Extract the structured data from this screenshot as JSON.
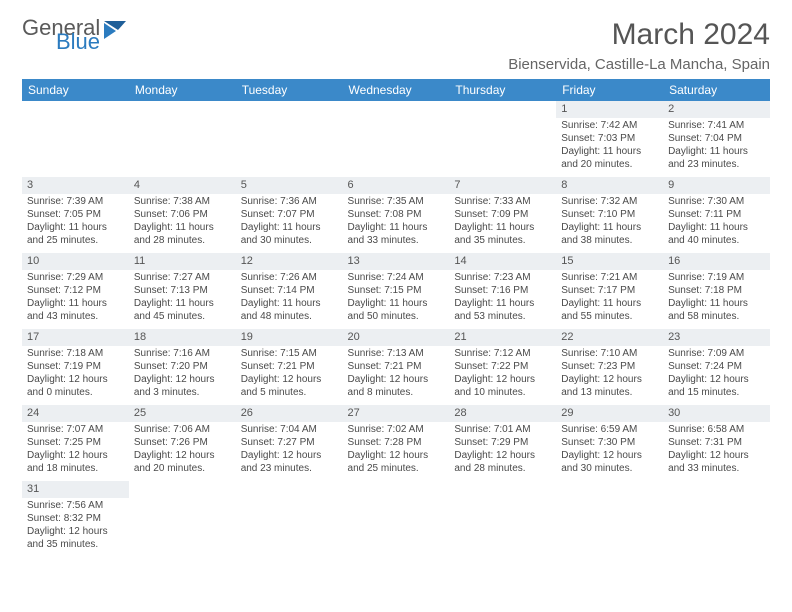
{
  "logo": {
    "text1": "General",
    "text2": "Blue",
    "color1": "#5a5a5a",
    "color2": "#2b7bbf"
  },
  "header": {
    "title": "March 2024",
    "location": "Bienservida, Castille-La Mancha, Spain"
  },
  "colors": {
    "header_bg": "#3b89c9",
    "header_text": "#ffffff",
    "daynum_bg": "#eceff2",
    "body_text": "#4a4a4a",
    "title_text": "#555555"
  },
  "daysOfWeek": [
    "Sunday",
    "Monday",
    "Tuesday",
    "Wednesday",
    "Thursday",
    "Friday",
    "Saturday"
  ],
  "weeks": [
    [
      {
        "n": "",
        "lines": []
      },
      {
        "n": "",
        "lines": []
      },
      {
        "n": "",
        "lines": []
      },
      {
        "n": "",
        "lines": []
      },
      {
        "n": "",
        "lines": []
      },
      {
        "n": "1",
        "lines": [
          "Sunrise: 7:42 AM",
          "Sunset: 7:03 PM",
          "Daylight: 11 hours",
          "and 20 minutes."
        ]
      },
      {
        "n": "2",
        "lines": [
          "Sunrise: 7:41 AM",
          "Sunset: 7:04 PM",
          "Daylight: 11 hours",
          "and 23 minutes."
        ]
      }
    ],
    [
      {
        "n": "3",
        "lines": [
          "Sunrise: 7:39 AM",
          "Sunset: 7:05 PM",
          "Daylight: 11 hours",
          "and 25 minutes."
        ]
      },
      {
        "n": "4",
        "lines": [
          "Sunrise: 7:38 AM",
          "Sunset: 7:06 PM",
          "Daylight: 11 hours",
          "and 28 minutes."
        ]
      },
      {
        "n": "5",
        "lines": [
          "Sunrise: 7:36 AM",
          "Sunset: 7:07 PM",
          "Daylight: 11 hours",
          "and 30 minutes."
        ]
      },
      {
        "n": "6",
        "lines": [
          "Sunrise: 7:35 AM",
          "Sunset: 7:08 PM",
          "Daylight: 11 hours",
          "and 33 minutes."
        ]
      },
      {
        "n": "7",
        "lines": [
          "Sunrise: 7:33 AM",
          "Sunset: 7:09 PM",
          "Daylight: 11 hours",
          "and 35 minutes."
        ]
      },
      {
        "n": "8",
        "lines": [
          "Sunrise: 7:32 AM",
          "Sunset: 7:10 PM",
          "Daylight: 11 hours",
          "and 38 minutes."
        ]
      },
      {
        "n": "9",
        "lines": [
          "Sunrise: 7:30 AM",
          "Sunset: 7:11 PM",
          "Daylight: 11 hours",
          "and 40 minutes."
        ]
      }
    ],
    [
      {
        "n": "10",
        "lines": [
          "Sunrise: 7:29 AM",
          "Sunset: 7:12 PM",
          "Daylight: 11 hours",
          "and 43 minutes."
        ]
      },
      {
        "n": "11",
        "lines": [
          "Sunrise: 7:27 AM",
          "Sunset: 7:13 PM",
          "Daylight: 11 hours",
          "and 45 minutes."
        ]
      },
      {
        "n": "12",
        "lines": [
          "Sunrise: 7:26 AM",
          "Sunset: 7:14 PM",
          "Daylight: 11 hours",
          "and 48 minutes."
        ]
      },
      {
        "n": "13",
        "lines": [
          "Sunrise: 7:24 AM",
          "Sunset: 7:15 PM",
          "Daylight: 11 hours",
          "and 50 minutes."
        ]
      },
      {
        "n": "14",
        "lines": [
          "Sunrise: 7:23 AM",
          "Sunset: 7:16 PM",
          "Daylight: 11 hours",
          "and 53 minutes."
        ]
      },
      {
        "n": "15",
        "lines": [
          "Sunrise: 7:21 AM",
          "Sunset: 7:17 PM",
          "Daylight: 11 hours",
          "and 55 minutes."
        ]
      },
      {
        "n": "16",
        "lines": [
          "Sunrise: 7:19 AM",
          "Sunset: 7:18 PM",
          "Daylight: 11 hours",
          "and 58 minutes."
        ]
      }
    ],
    [
      {
        "n": "17",
        "lines": [
          "Sunrise: 7:18 AM",
          "Sunset: 7:19 PM",
          "Daylight: 12 hours",
          "and 0 minutes."
        ]
      },
      {
        "n": "18",
        "lines": [
          "Sunrise: 7:16 AM",
          "Sunset: 7:20 PM",
          "Daylight: 12 hours",
          "and 3 minutes."
        ]
      },
      {
        "n": "19",
        "lines": [
          "Sunrise: 7:15 AM",
          "Sunset: 7:21 PM",
          "Daylight: 12 hours",
          "and 5 minutes."
        ]
      },
      {
        "n": "20",
        "lines": [
          "Sunrise: 7:13 AM",
          "Sunset: 7:21 PM",
          "Daylight: 12 hours",
          "and 8 minutes."
        ]
      },
      {
        "n": "21",
        "lines": [
          "Sunrise: 7:12 AM",
          "Sunset: 7:22 PM",
          "Daylight: 12 hours",
          "and 10 minutes."
        ]
      },
      {
        "n": "22",
        "lines": [
          "Sunrise: 7:10 AM",
          "Sunset: 7:23 PM",
          "Daylight: 12 hours",
          "and 13 minutes."
        ]
      },
      {
        "n": "23",
        "lines": [
          "Sunrise: 7:09 AM",
          "Sunset: 7:24 PM",
          "Daylight: 12 hours",
          "and 15 minutes."
        ]
      }
    ],
    [
      {
        "n": "24",
        "lines": [
          "Sunrise: 7:07 AM",
          "Sunset: 7:25 PM",
          "Daylight: 12 hours",
          "and 18 minutes."
        ]
      },
      {
        "n": "25",
        "lines": [
          "Sunrise: 7:06 AM",
          "Sunset: 7:26 PM",
          "Daylight: 12 hours",
          "and 20 minutes."
        ]
      },
      {
        "n": "26",
        "lines": [
          "Sunrise: 7:04 AM",
          "Sunset: 7:27 PM",
          "Daylight: 12 hours",
          "and 23 minutes."
        ]
      },
      {
        "n": "27",
        "lines": [
          "Sunrise: 7:02 AM",
          "Sunset: 7:28 PM",
          "Daylight: 12 hours",
          "and 25 minutes."
        ]
      },
      {
        "n": "28",
        "lines": [
          "Sunrise: 7:01 AM",
          "Sunset: 7:29 PM",
          "Daylight: 12 hours",
          "and 28 minutes."
        ]
      },
      {
        "n": "29",
        "lines": [
          "Sunrise: 6:59 AM",
          "Sunset: 7:30 PM",
          "Daylight: 12 hours",
          "and 30 minutes."
        ]
      },
      {
        "n": "30",
        "lines": [
          "Sunrise: 6:58 AM",
          "Sunset: 7:31 PM",
          "Daylight: 12 hours",
          "and 33 minutes."
        ]
      }
    ],
    [
      {
        "n": "31",
        "lines": [
          "Sunrise: 7:56 AM",
          "Sunset: 8:32 PM",
          "Daylight: 12 hours",
          "and 35 minutes."
        ]
      },
      {
        "n": "",
        "lines": []
      },
      {
        "n": "",
        "lines": []
      },
      {
        "n": "",
        "lines": []
      },
      {
        "n": "",
        "lines": []
      },
      {
        "n": "",
        "lines": []
      },
      {
        "n": "",
        "lines": []
      }
    ]
  ]
}
